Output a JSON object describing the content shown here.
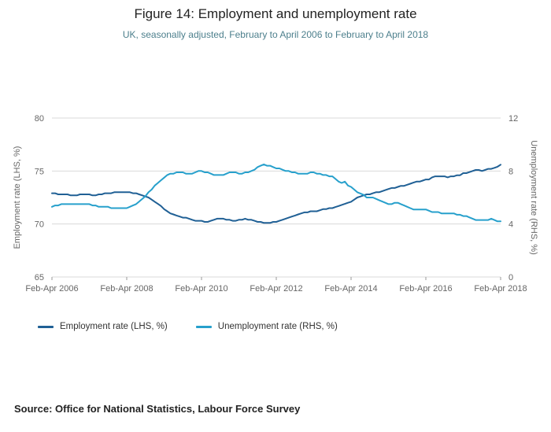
{
  "page": {
    "title": "Figure 14: Employment and unemployment rate",
    "subtitle": "UK, seasonally adjusted, February to April 2006 to February to April 2018",
    "source": "Source: Office for National Statistics, Labour Force Survey"
  },
  "colors": {
    "employment_line": "#206095",
    "unemployment_line": "#27a0cc",
    "grid": "#d9d9d9",
    "axis_text": "#666666",
    "subtitle_text": "#4c7f8c"
  },
  "chart_data": {
    "type": "line",
    "title": "Figure 14: Employment and unemployment rate",
    "subtitle": "UK, seasonally adjusted, February to April 2006 to February to April 2018",
    "grid": true,
    "legend_position": "bottom-left",
    "x_tick_labels": [
      "Feb-Apr 2006",
      "Feb-Apr 2008",
      "Feb-Apr 2010",
      "Feb-Apr 2012",
      "Feb-Apr 2014",
      "Feb-Apr 2016",
      "Feb-Apr 2018"
    ],
    "x_tick_indices": [
      0,
      24,
      48,
      72,
      96,
      120,
      144
    ],
    "left_axis": {
      "label": "Employment rate (LHS, %)",
      "range": [
        65,
        80
      ],
      "ticks": [
        65,
        70,
        75,
        80
      ]
    },
    "right_axis": {
      "label": "Unemployment rate (RHS, %)",
      "range": [
        0,
        12
      ],
      "ticks": [
        0,
        4,
        8,
        12
      ]
    },
    "series": [
      {
        "name": "Employment rate (LHS, %)",
        "axis": "left",
        "color": "#206095",
        "values": [
          72.9,
          72.9,
          72.8,
          72.8,
          72.8,
          72.8,
          72.7,
          72.7,
          72.7,
          72.8,
          72.8,
          72.8,
          72.8,
          72.7,
          72.7,
          72.8,
          72.8,
          72.9,
          72.9,
          72.9,
          73.0,
          73.0,
          73.0,
          73.0,
          73.0,
          73.0,
          72.9,
          72.9,
          72.8,
          72.7,
          72.6,
          72.5,
          72.3,
          72.1,
          71.9,
          71.7,
          71.4,
          71.2,
          71.0,
          70.9,
          70.8,
          70.7,
          70.6,
          70.6,
          70.5,
          70.4,
          70.3,
          70.3,
          70.3,
          70.2,
          70.2,
          70.3,
          70.4,
          70.5,
          70.5,
          70.5,
          70.4,
          70.4,
          70.3,
          70.3,
          70.4,
          70.4,
          70.5,
          70.4,
          70.4,
          70.3,
          70.2,
          70.2,
          70.1,
          70.1,
          70.1,
          70.2,
          70.2,
          70.3,
          70.4,
          70.5,
          70.6,
          70.7,
          70.8,
          70.9,
          71.0,
          71.1,
          71.1,
          71.2,
          71.2,
          71.2,
          71.3,
          71.4,
          71.4,
          71.5,
          71.5,
          71.6,
          71.7,
          71.8,
          71.9,
          72.0,
          72.1,
          72.3,
          72.5,
          72.6,
          72.7,
          72.8,
          72.8,
          72.9,
          73.0,
          73.0,
          73.1,
          73.2,
          73.3,
          73.4,
          73.4,
          73.5,
          73.6,
          73.6,
          73.7,
          73.8,
          73.9,
          74.0,
          74.0,
          74.1,
          74.2,
          74.2,
          74.4,
          74.5,
          74.5,
          74.5,
          74.5,
          74.4,
          74.5,
          74.5,
          74.6,
          74.6,
          74.8,
          74.8,
          74.9,
          75.0,
          75.1,
          75.1,
          75.0,
          75.1,
          75.2,
          75.2,
          75.3,
          75.4,
          75.6
        ]
      },
      {
        "name": "Unemployment rate (RHS, %)",
        "axis": "right",
        "color": "#27a0cc",
        "values": [
          5.3,
          5.4,
          5.4,
          5.5,
          5.5,
          5.5,
          5.5,
          5.5,
          5.5,
          5.5,
          5.5,
          5.5,
          5.5,
          5.4,
          5.4,
          5.3,
          5.3,
          5.3,
          5.3,
          5.2,
          5.2,
          5.2,
          5.2,
          5.2,
          5.2,
          5.3,
          5.4,
          5.5,
          5.7,
          5.9,
          6.1,
          6.4,
          6.6,
          6.9,
          7.1,
          7.3,
          7.5,
          7.7,
          7.8,
          7.8,
          7.9,
          7.9,
          7.9,
          7.8,
          7.8,
          7.8,
          7.9,
          8.0,
          8.0,
          7.9,
          7.9,
          7.8,
          7.7,
          7.7,
          7.7,
          7.7,
          7.8,
          7.9,
          7.9,
          7.9,
          7.8,
          7.8,
          7.9,
          7.9,
          8.0,
          8.1,
          8.3,
          8.4,
          8.5,
          8.4,
          8.4,
          8.3,
          8.2,
          8.2,
          8.1,
          8.0,
          8.0,
          7.9,
          7.9,
          7.8,
          7.8,
          7.8,
          7.8,
          7.9,
          7.9,
          7.8,
          7.8,
          7.7,
          7.7,
          7.6,
          7.6,
          7.4,
          7.2,
          7.1,
          7.2,
          6.9,
          6.8,
          6.6,
          6.4,
          6.3,
          6.2,
          6.0,
          6.0,
          6.0,
          5.9,
          5.8,
          5.7,
          5.6,
          5.5,
          5.5,
          5.6,
          5.6,
          5.5,
          5.4,
          5.3,
          5.2,
          5.1,
          5.1,
          5.1,
          5.1,
          5.1,
          5.0,
          4.9,
          4.9,
          4.9,
          4.8,
          4.8,
          4.8,
          4.8,
          4.8,
          4.7,
          4.7,
          4.6,
          4.6,
          4.5,
          4.4,
          4.3,
          4.3,
          4.3,
          4.3,
          4.3,
          4.4,
          4.3,
          4.2,
          4.2
        ]
      }
    ]
  }
}
